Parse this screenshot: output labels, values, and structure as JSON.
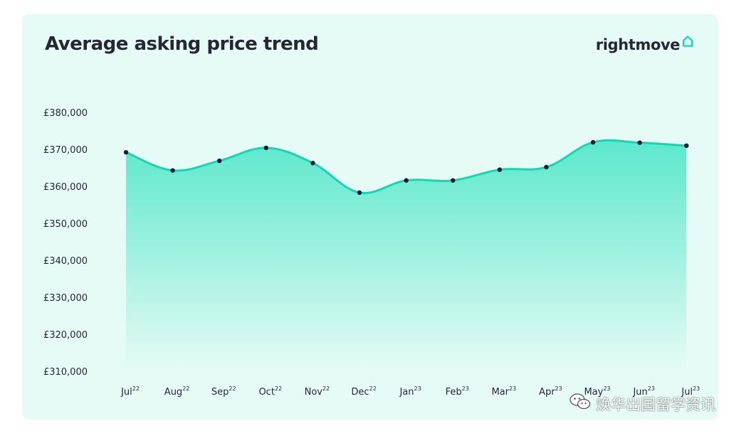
{
  "brand": {
    "name": "rightmove",
    "icon": "house-icon",
    "color": "#00deb6"
  },
  "watermark": {
    "text": "焕华出国留学资讯",
    "icon": "wechat-icon"
  },
  "chart_data": {
    "type": "area",
    "title": "Average asking price trend",
    "xlabel": "",
    "ylabel": "",
    "ylim": [
      310000,
      380000
    ],
    "yticks": [
      380000,
      370000,
      360000,
      350000,
      340000,
      330000,
      320000,
      310000
    ],
    "ytick_labels": [
      "£380,000",
      "£370,000",
      "£360,000",
      "£350,000",
      "£340,000",
      "£330,000",
      "£320,000",
      "£310,000"
    ],
    "categories": [
      {
        "label": "Jul",
        "sup": "22"
      },
      {
        "label": "Aug",
        "sup": "22"
      },
      {
        "label": "Sep",
        "sup": "22"
      },
      {
        "label": "Oct",
        "sup": "22"
      },
      {
        "label": "Nov",
        "sup": "22"
      },
      {
        "label": "Dec",
        "sup": "22"
      },
      {
        "label": "Jan",
        "sup": "23"
      },
      {
        "label": "Feb",
        "sup": "23"
      },
      {
        "label": "Mar",
        "sup": "23"
      },
      {
        "label": "Apr",
        "sup": "23"
      },
      {
        "label": "May",
        "sup": "23"
      },
      {
        "label": "Jun",
        "sup": "23"
      },
      {
        "label": "Jul",
        "sup": "23"
      }
    ],
    "values": [
      369200,
      364300,
      366900,
      370400,
      366300,
      358300,
      361600,
      361600,
      364500,
      365200,
      371900,
      371800,
      371000
    ],
    "grid": false,
    "legend": "none",
    "colors": {
      "line": "#12d8b2",
      "fill_top": "#5ce8cc",
      "fill_bottom": "#e6fbf5",
      "point": "#1a1a3a",
      "text": "#262637"
    }
  }
}
